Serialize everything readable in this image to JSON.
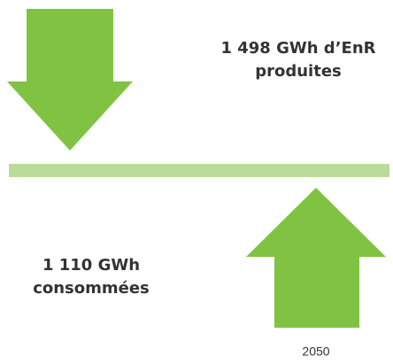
{
  "produced": {
    "lines": [
      "1 498 GWh d’EnR",
      "produites"
    ]
  },
  "consumed": {
    "lines": [
      "1 110 GWh",
      "consommées"
    ]
  },
  "year": "2050"
}
